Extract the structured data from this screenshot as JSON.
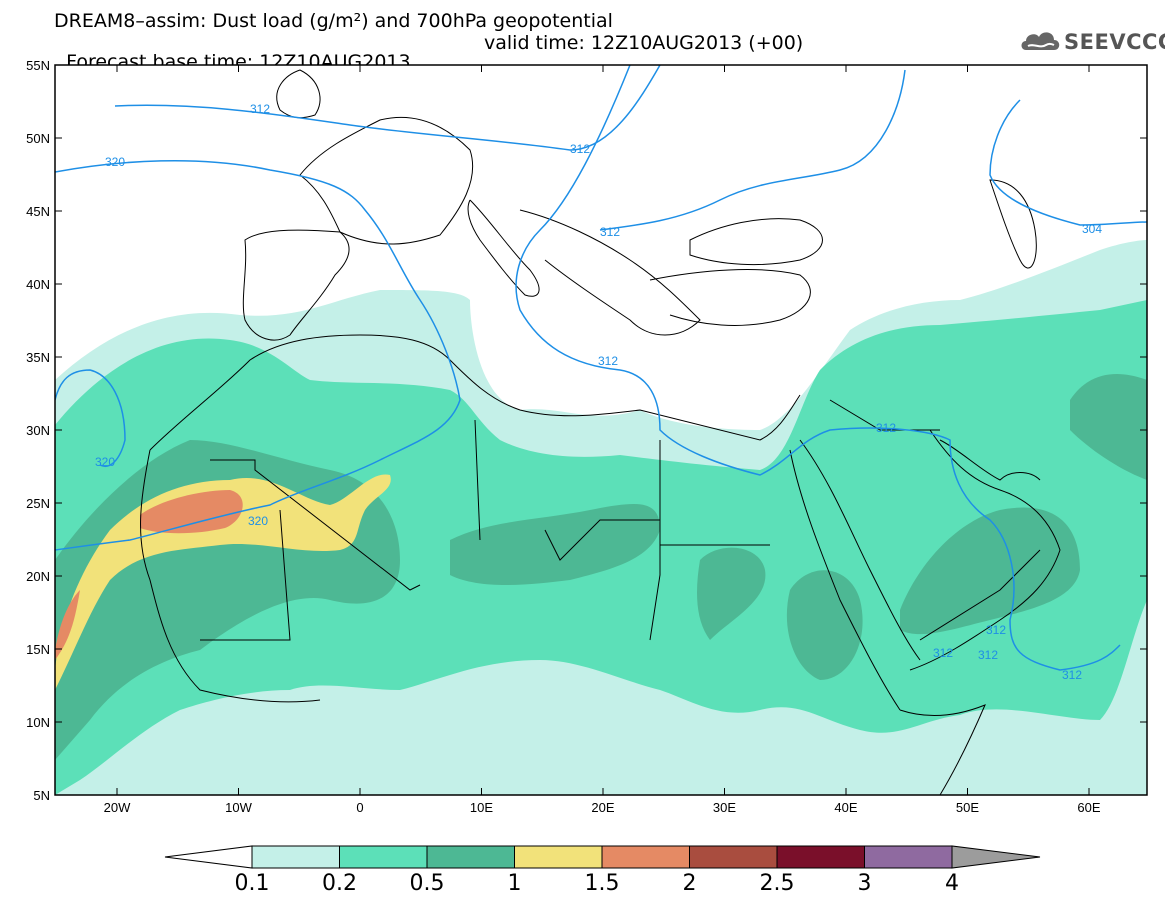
{
  "title": {
    "line1": "DREAM8–assim: Dust load (g/m²) and 700hPa geopotential",
    "line2_base": "Forecast base time: 12Z10AUG2013",
    "line2_valid": "valid time: 12Z10AUG2013 (+00)"
  },
  "logo": {
    "text": "SEEVCCC",
    "icon": "cloud-icon"
  },
  "axes": {
    "lat_labels": [
      "55N",
      "50N",
      "45N",
      "40N",
      "35N",
      "30N",
      "25N",
      "20N",
      "15N",
      "10N",
      "5N"
    ],
    "lon_labels": [
      "20W",
      "10W",
      "0",
      "10E",
      "20E",
      "30E",
      "40E",
      "50E",
      "60E"
    ]
  },
  "contour_labels": [
    "312",
    "320",
    "312",
    "312",
    "320",
    "320",
    "312",
    "312",
    "304",
    "312",
    "312",
    "312",
    "312"
  ],
  "colorbar": {
    "labels": [
      "0.1",
      "0.2",
      "0.5",
      "1",
      "1.5",
      "2",
      "2.5",
      "3",
      "4"
    ],
    "colors": [
      "#c4f0e8",
      "#5ce0b8",
      "#4db894",
      "#f2e27a",
      "#e58a64",
      "#a94d3f",
      "#7a0f2a",
      "#8f6aa0",
      "#9c9c9c"
    ]
  },
  "colors": {
    "contour": "#1e8fe6",
    "coast": "#000000",
    "dust_01": "#c4f0e8",
    "dust_02": "#5ce0b8",
    "dust_05": "#4db894",
    "dust_1": "#f2e27a",
    "dust_15": "#e58a64"
  }
}
